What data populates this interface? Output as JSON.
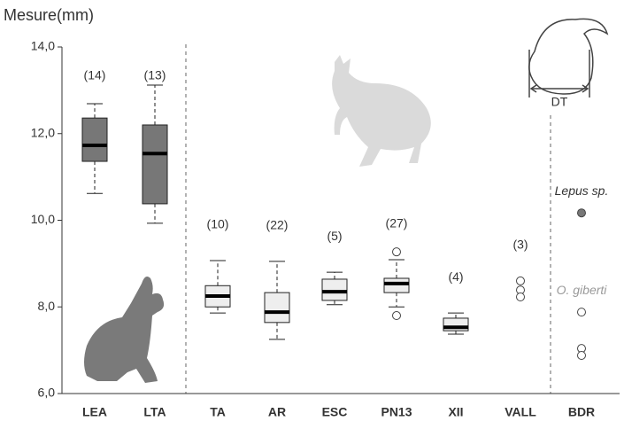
{
  "chart_data": {
    "type": "box",
    "y_label": "Mesure(mm)",
    "categories": [
      "LEA",
      "LTA",
      "TA",
      "AR",
      "ESC",
      "PN13",
      "XII",
      "VALL",
      "BDR"
    ],
    "ylim": [
      6.0,
      14.0
    ],
    "yticks": [
      {
        "value": 6,
        "label": "6,0"
      },
      {
        "value": 8,
        "label": "8,0"
      },
      {
        "value": 10,
        "label": "10,0"
      },
      {
        "value": 12,
        "label": "12,0"
      },
      {
        "value": 14,
        "label": "14,0"
      }
    ],
    "boxes": [
      {
        "count": "(14)",
        "color": "#777777",
        "whislo": 10.62,
        "q1": 11.36,
        "med": 11.73,
        "q3": 12.36,
        "whishi": 12.69
      },
      {
        "count": "(13)",
        "color": "#777777",
        "whislo": 9.93,
        "q1": 10.38,
        "med": 11.54,
        "q3": 12.2,
        "whishi": 13.12
      },
      {
        "count": "(10)",
        "color": "#eeeeee",
        "whislo": 7.86,
        "q1": 8.0,
        "med": 8.25,
        "q3": 8.49,
        "whishi": 9.07
      },
      {
        "count": "(22)",
        "color": "#eeeeee",
        "whislo": 7.25,
        "q1": 7.64,
        "med": 7.88,
        "q3": 8.33,
        "whishi": 9.05
      },
      {
        "count": "(5)",
        "color": "#eeeeee",
        "whislo": 8.05,
        "q1": 8.15,
        "med": 8.35,
        "q3": 8.64,
        "whishi": 8.8
      },
      {
        "count": "(27)",
        "color": "#eeeeee",
        "whislo": 8.0,
        "q1": 8.33,
        "med": 8.54,
        "q3": 8.66,
        "whishi": 9.09,
        "fliers": [
          9.27,
          7.8
        ]
      },
      {
        "count": "(4)",
        "color": "#eeeeee",
        "whislo": 7.37,
        "q1": 7.45,
        "med": 7.53,
        "q3": 7.74,
        "whishi": 7.86
      },
      {
        "count": "(3)",
        "fliers": [
          8.6,
          8.39,
          8.23
        ]
      },
      {
        "groups": [
          {
            "name": "Lepus sp.",
            "color": "#777777",
            "values": [
              10.17
            ]
          },
          {
            "name": "O. giberti",
            "color": "#ffffff",
            "values": [
              7.88,
              7.04,
              6.88
            ]
          }
        ]
      }
    ],
    "diagram_label": "DT"
  }
}
